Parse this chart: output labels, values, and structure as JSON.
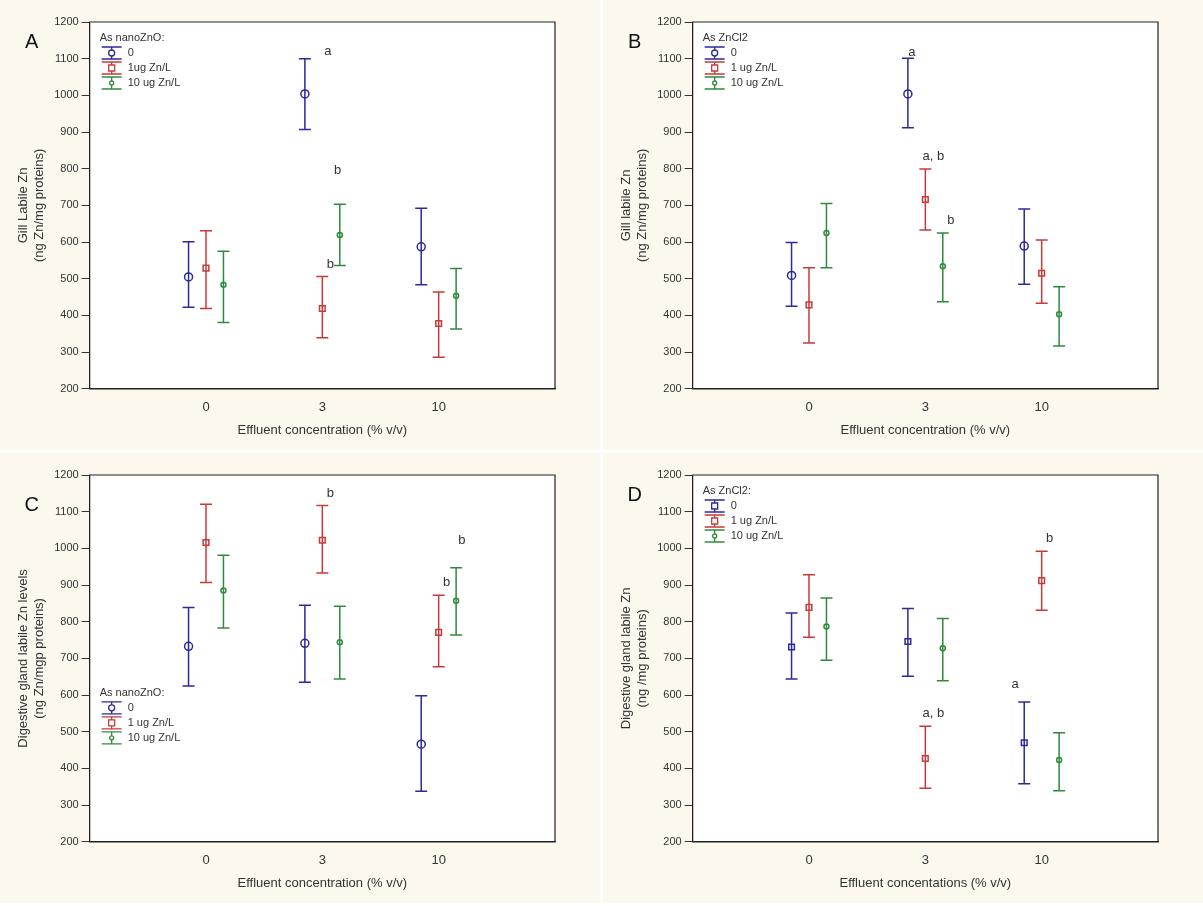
{
  "chart_data": [
    {
      "type": "scatter",
      "title": "A",
      "xlabel": "Effluent concentration (% v/v)",
      "ylabel": "Gill Labile Zn\n(ng Zn/mg proteins)",
      "legend_title": "As nanoZnO:",
      "legend": "top left",
      "categories": [
        "0",
        "3",
        "10"
      ],
      "ylim": [
        200,
        1200
      ],
      "yticks": [
        200,
        300,
        400,
        500,
        600,
        700,
        800,
        900,
        1000,
        1100,
        1200
      ],
      "series": [
        {
          "name": "0",
          "color": "#2a2a9c",
          "marker": "circle",
          "values": [
            505,
            1004,
            587
          ],
          "errors": [
            [
              422,
              601
            ],
            [
              907,
              1100
            ],
            [
              484,
              692
            ]
          ]
        },
        {
          "name": "1ug Zn/L",
          "color": "#c83a3a",
          "marker": "square",
          "values": [
            529,
            419,
            378
          ],
          "errors": [
            [
              419,
              631
            ],
            [
              339,
              506
            ],
            [
              286,
              464
            ]
          ]
        },
        {
          "name": "10 ug Zn/L",
          "color": "#2f8a3e",
          "marker": "circle",
          "values": [
            484,
            619,
            454
          ],
          "errors": [
            [
              381,
              575
            ],
            [
              536,
              703
            ],
            [
              363,
              528
            ]
          ]
        }
      ],
      "annotations": [
        "a",
        "b",
        {
          "text": "b",
          "x": "3",
          "y": 506
        }
      ]
    },
    {
      "type": "scatter",
      "title": "B",
      "xlabel": "Effluent concentration (% v/v)",
      "ylabel": "Gill labile Zn\n(ng Zn/mg proteins)",
      "legend_title": "As ZnCl2",
      "legend": "top left",
      "categories": [
        "0",
        "3",
        "10"
      ],
      "ylim": [
        200,
        1200
      ],
      "yticks": [
        200,
        300,
        400,
        500,
        600,
        700,
        800,
        900,
        1000,
        1100,
        1200
      ],
      "series": [
        {
          "name": "0",
          "color": "#2a2a9c",
          "marker": "circle",
          "values": [
            509,
            1004,
            589
          ],
          "errors": [
            [
              425,
              599
            ],
            [
              912,
              1101
            ],
            [
              485,
              690
            ]
          ]
        },
        {
          "name": "1 ug Zn/L",
          "color": "#c83a3a",
          "marker": "square",
          "values": [
            429,
            716,
            515
          ],
          "errors": [
            [
              325,
              530
            ],
            [
              633,
              799
            ],
            [
              433,
              606
            ]
          ]
        },
        {
          "name": "10 ug Zn/L",
          "color": "#2f8a3e",
          "marker": "circle",
          "values": [
            625,
            534,
            403
          ],
          "errors": [
            [
              530,
              705
            ],
            [
              437,
              625
            ],
            [
              317,
              478
            ]
          ]
        }
      ],
      "annotations": [
        "a",
        {
          "text": "a, b",
          "x": "3",
          "y": 799
        },
        {
          "text": "b",
          "x": "3",
          "y": 625
        }
      ]
    },
    {
      "type": "scatter",
      "title": "C",
      "xlabel": "Effluent concentration (% v/v)",
      "ylabel": "Digestive gland labile Zn levels\n(ng Zn/mgp proteins)",
      "legend_title": "As nanoZnO:",
      "legend": "bottom left",
      "categories": [
        "0",
        "3",
        "10"
      ],
      "ylim": [
        200,
        1200
      ],
      "yticks": [
        200,
        300,
        400,
        500,
        600,
        700,
        800,
        900,
        1000,
        1100,
        1200
      ],
      "series": [
        {
          "name": "0",
          "color": "#2a2a9c",
          "marker": "circle",
          "values": [
            733,
            741,
            466
          ],
          "errors": [
            [
              625,
              839
            ],
            [
              635,
              845
            ],
            [
              338,
              598
            ]
          ]
        },
        {
          "name": "1 ug Zn/L",
          "color": "#c83a3a",
          "marker": "square",
          "values": [
            1016,
            1022,
            771
          ],
          "errors": [
            [
              907,
              1120
            ],
            [
              933,
              1117
            ],
            [
              677,
              872
            ]
          ]
        },
        {
          "name": "10 ug Zn/L",
          "color": "#2f8a3e",
          "marker": "circle",
          "values": [
            885,
            744,
            857
          ],
          "errors": [
            [
              783,
              981
            ],
            [
              644,
              842
            ],
            [
              764,
              947
            ]
          ]
        }
      ],
      "annotations": [
        {
          "text": "b",
          "x": "3",
          "y": 1117
        },
        {
          "text": "b",
          "x": "10",
          "y": 872
        },
        "b"
      ]
    },
    {
      "type": "scatter",
      "title": "D",
      "xlabel": "Effluent concentations (% v/v)",
      "ylabel": "Digestive gland labile Zn\n(ng /mg proteins)",
      "legend_title": "As ZnCl2:",
      "legend": "top left",
      "categories": [
        "0",
        "3",
        "10"
      ],
      "ylim": [
        200,
        1200
      ],
      "yticks": [
        200,
        300,
        400,
        500,
        600,
        700,
        800,
        900,
        1000,
        1100,
        1200
      ],
      "series": [
        {
          "name": "0",
          "color": "#2a2a9c",
          "marker": "square",
          "values": [
            731,
            746,
            470
          ],
          "errors": [
            [
              644,
              824
            ],
            [
              651,
              836
            ],
            [
              358,
              581
            ]
          ]
        },
        {
          "name": "1 ug Zn/L",
          "color": "#c83a3a",
          "marker": "square",
          "values": [
            839,
            427,
            912
          ],
          "errors": [
            [
              758,
              928
            ],
            [
              346,
              515
            ],
            [
              831,
              992
            ]
          ]
        },
        {
          "name": "10 ug Zn/L",
          "color": "#2f8a3e",
          "marker": "circle",
          "values": [
            787,
            728,
            423
          ],
          "errors": [
            [
              695,
              865
            ],
            [
              639,
              809
            ],
            [
              339,
              497
            ]
          ]
        }
      ],
      "annotations": [
        {
          "text": "b",
          "x": "10",
          "y": 992
        },
        "a",
        {
          "text": "a, b",
          "x": "3",
          "y": 515
        }
      ]
    }
  ]
}
